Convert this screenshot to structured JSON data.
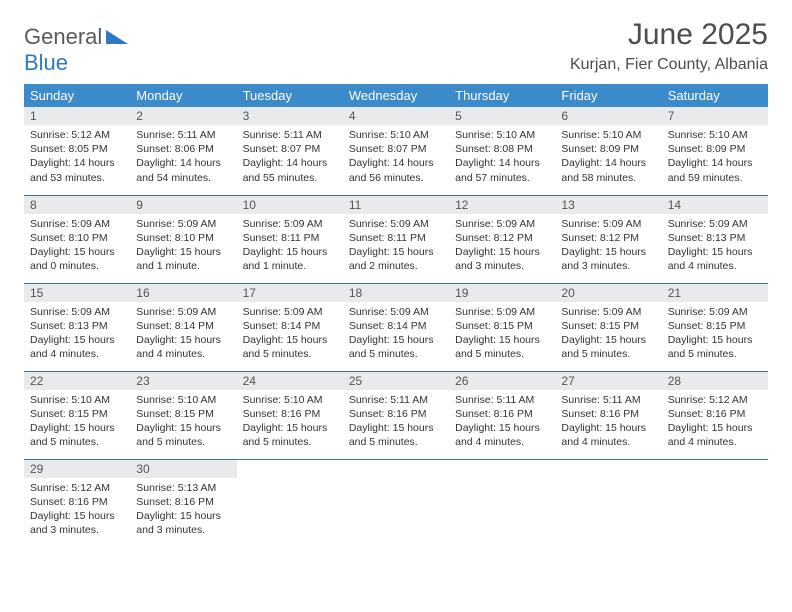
{
  "brand": {
    "general": "General",
    "blue": "Blue",
    "accent_color": "#2f79c2"
  },
  "title": "June 2025",
  "location": "Kurjan, Fier County, Albania",
  "colors": {
    "header_bg": "#3b8bca",
    "header_fg": "#ffffff",
    "daynum_bg": "#e8eaec",
    "row_border": "#3b6fa0",
    "text": "#333333"
  },
  "weekdays": [
    "Sunday",
    "Monday",
    "Tuesday",
    "Wednesday",
    "Thursday",
    "Friday",
    "Saturday"
  ],
  "weeks": [
    [
      {
        "n": "1",
        "sr": "Sunrise: 5:12 AM",
        "ss": "Sunset: 8:05 PM",
        "dl": "Daylight: 14 hours and 53 minutes."
      },
      {
        "n": "2",
        "sr": "Sunrise: 5:11 AM",
        "ss": "Sunset: 8:06 PM",
        "dl": "Daylight: 14 hours and 54 minutes."
      },
      {
        "n": "3",
        "sr": "Sunrise: 5:11 AM",
        "ss": "Sunset: 8:07 PM",
        "dl": "Daylight: 14 hours and 55 minutes."
      },
      {
        "n": "4",
        "sr": "Sunrise: 5:10 AM",
        "ss": "Sunset: 8:07 PM",
        "dl": "Daylight: 14 hours and 56 minutes."
      },
      {
        "n": "5",
        "sr": "Sunrise: 5:10 AM",
        "ss": "Sunset: 8:08 PM",
        "dl": "Daylight: 14 hours and 57 minutes."
      },
      {
        "n": "6",
        "sr": "Sunrise: 5:10 AM",
        "ss": "Sunset: 8:09 PM",
        "dl": "Daylight: 14 hours and 58 minutes."
      },
      {
        "n": "7",
        "sr": "Sunrise: 5:10 AM",
        "ss": "Sunset: 8:09 PM",
        "dl": "Daylight: 14 hours and 59 minutes."
      }
    ],
    [
      {
        "n": "8",
        "sr": "Sunrise: 5:09 AM",
        "ss": "Sunset: 8:10 PM",
        "dl": "Daylight: 15 hours and 0 minutes."
      },
      {
        "n": "9",
        "sr": "Sunrise: 5:09 AM",
        "ss": "Sunset: 8:10 PM",
        "dl": "Daylight: 15 hours and 1 minute."
      },
      {
        "n": "10",
        "sr": "Sunrise: 5:09 AM",
        "ss": "Sunset: 8:11 PM",
        "dl": "Daylight: 15 hours and 1 minute."
      },
      {
        "n": "11",
        "sr": "Sunrise: 5:09 AM",
        "ss": "Sunset: 8:11 PM",
        "dl": "Daylight: 15 hours and 2 minutes."
      },
      {
        "n": "12",
        "sr": "Sunrise: 5:09 AM",
        "ss": "Sunset: 8:12 PM",
        "dl": "Daylight: 15 hours and 3 minutes."
      },
      {
        "n": "13",
        "sr": "Sunrise: 5:09 AM",
        "ss": "Sunset: 8:12 PM",
        "dl": "Daylight: 15 hours and 3 minutes."
      },
      {
        "n": "14",
        "sr": "Sunrise: 5:09 AM",
        "ss": "Sunset: 8:13 PM",
        "dl": "Daylight: 15 hours and 4 minutes."
      }
    ],
    [
      {
        "n": "15",
        "sr": "Sunrise: 5:09 AM",
        "ss": "Sunset: 8:13 PM",
        "dl": "Daylight: 15 hours and 4 minutes."
      },
      {
        "n": "16",
        "sr": "Sunrise: 5:09 AM",
        "ss": "Sunset: 8:14 PM",
        "dl": "Daylight: 15 hours and 4 minutes."
      },
      {
        "n": "17",
        "sr": "Sunrise: 5:09 AM",
        "ss": "Sunset: 8:14 PM",
        "dl": "Daylight: 15 hours and 5 minutes."
      },
      {
        "n": "18",
        "sr": "Sunrise: 5:09 AM",
        "ss": "Sunset: 8:14 PM",
        "dl": "Daylight: 15 hours and 5 minutes."
      },
      {
        "n": "19",
        "sr": "Sunrise: 5:09 AM",
        "ss": "Sunset: 8:15 PM",
        "dl": "Daylight: 15 hours and 5 minutes."
      },
      {
        "n": "20",
        "sr": "Sunrise: 5:09 AM",
        "ss": "Sunset: 8:15 PM",
        "dl": "Daylight: 15 hours and 5 minutes."
      },
      {
        "n": "21",
        "sr": "Sunrise: 5:09 AM",
        "ss": "Sunset: 8:15 PM",
        "dl": "Daylight: 15 hours and 5 minutes."
      }
    ],
    [
      {
        "n": "22",
        "sr": "Sunrise: 5:10 AM",
        "ss": "Sunset: 8:15 PM",
        "dl": "Daylight: 15 hours and 5 minutes."
      },
      {
        "n": "23",
        "sr": "Sunrise: 5:10 AM",
        "ss": "Sunset: 8:15 PM",
        "dl": "Daylight: 15 hours and 5 minutes."
      },
      {
        "n": "24",
        "sr": "Sunrise: 5:10 AM",
        "ss": "Sunset: 8:16 PM",
        "dl": "Daylight: 15 hours and 5 minutes."
      },
      {
        "n": "25",
        "sr": "Sunrise: 5:11 AM",
        "ss": "Sunset: 8:16 PM",
        "dl": "Daylight: 15 hours and 5 minutes."
      },
      {
        "n": "26",
        "sr": "Sunrise: 5:11 AM",
        "ss": "Sunset: 8:16 PM",
        "dl": "Daylight: 15 hours and 4 minutes."
      },
      {
        "n": "27",
        "sr": "Sunrise: 5:11 AM",
        "ss": "Sunset: 8:16 PM",
        "dl": "Daylight: 15 hours and 4 minutes."
      },
      {
        "n": "28",
        "sr": "Sunrise: 5:12 AM",
        "ss": "Sunset: 8:16 PM",
        "dl": "Daylight: 15 hours and 4 minutes."
      }
    ],
    [
      {
        "n": "29",
        "sr": "Sunrise: 5:12 AM",
        "ss": "Sunset: 8:16 PM",
        "dl": "Daylight: 15 hours and 3 minutes."
      },
      {
        "n": "30",
        "sr": "Sunrise: 5:13 AM",
        "ss": "Sunset: 8:16 PM",
        "dl": "Daylight: 15 hours and 3 minutes."
      },
      {
        "empty": true
      },
      {
        "empty": true
      },
      {
        "empty": true
      },
      {
        "empty": true
      },
      {
        "empty": true
      }
    ]
  ]
}
